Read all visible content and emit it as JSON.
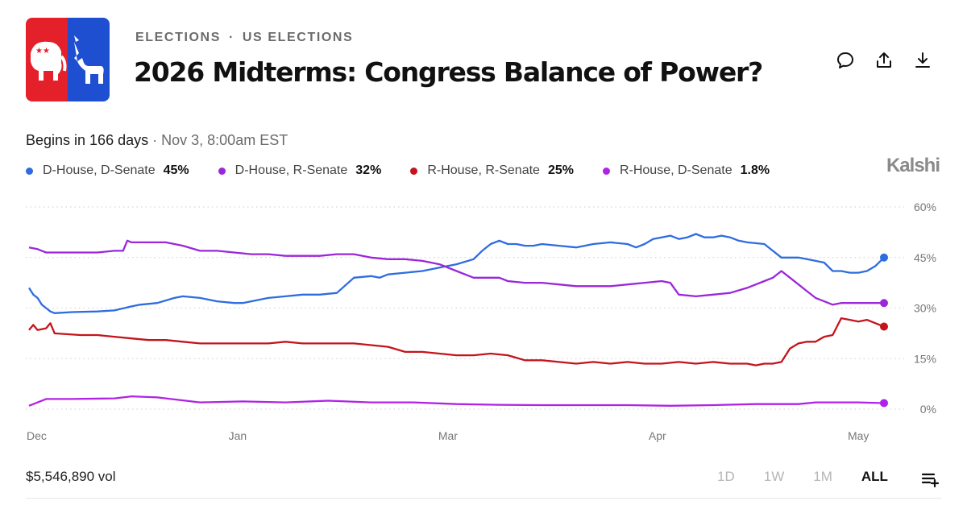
{
  "header": {
    "category_left": "ELECTIONS",
    "category_sep": "·",
    "category_right": "US ELECTIONS",
    "title": "2026 Midterms: Congress Balance of Power?"
  },
  "icons": [
    "comment-icon",
    "share-icon",
    "download-icon",
    "list-add-icon"
  ],
  "status": {
    "begins": "Begins in 166 days",
    "sep": "·",
    "date": "Nov 3, 8:00am EST"
  },
  "brand": "Kalshi",
  "colors": {
    "blue": "#2e6cdf",
    "purple": "#9b27d9",
    "red": "#c4141c",
    "grid": "#d6d6d6"
  },
  "legend": [
    {
      "label": "D-House, D-Senate",
      "value": "45%",
      "color": "#2e6cdf"
    },
    {
      "label": "D-House, R-Senate",
      "value": "32%",
      "color": "#9b27d9"
    },
    {
      "label": "R-House, R-Senate",
      "value": "25%",
      "color": "#c4141c"
    },
    {
      "label": "R-House, D-Senate",
      "value": "1.8%",
      "color": "#b023e6"
    }
  ],
  "footer": {
    "volume": "$5,546,890 vol",
    "ranges": [
      "1D",
      "1W",
      "1M",
      "ALL"
    ],
    "active_range": "ALL"
  },
  "chart_data": {
    "type": "line",
    "x_ticks": [
      "Dec",
      "Jan",
      "Mar",
      "Apr",
      "May"
    ],
    "x_tick_pos": [
      0,
      0.244,
      0.49,
      0.735,
      0.97
    ],
    "y_ticks": [
      "60%",
      "45%",
      "30%",
      "15%",
      "0%"
    ],
    "ylim": [
      0,
      60
    ],
    "grid": "horizontal dotted",
    "series": [
      {
        "name": "D-House, D-Senate",
        "color": "#2e6cdf",
        "x": [
          0,
          0.005,
          0.01,
          0.015,
          0.02,
          0.025,
          0.03,
          0.05,
          0.08,
          0.1,
          0.12,
          0.13,
          0.15,
          0.17,
          0.18,
          0.2,
          0.22,
          0.24,
          0.25,
          0.26,
          0.28,
          0.3,
          0.32,
          0.34,
          0.36,
          0.38,
          0.4,
          0.41,
          0.42,
          0.44,
          0.46,
          0.48,
          0.5,
          0.52,
          0.53,
          0.54,
          0.55,
          0.56,
          0.57,
          0.58,
          0.59,
          0.6,
          0.62,
          0.64,
          0.66,
          0.68,
          0.7,
          0.71,
          0.72,
          0.73,
          0.74,
          0.75,
          0.76,
          0.77,
          0.78,
          0.79,
          0.8,
          0.81,
          0.82,
          0.83,
          0.84,
          0.86,
          0.88,
          0.9,
          0.91,
          0.92,
          0.93,
          0.94,
          0.95,
          0.96,
          0.97,
          0.98,
          0.99,
          1.0
        ],
        "y": [
          36,
          34,
          33,
          31,
          30,
          29,
          28.5,
          28.8,
          29,
          29.3,
          30.5,
          31,
          31.5,
          33,
          33.5,
          33,
          32,
          31.5,
          31.5,
          32,
          33,
          33.5,
          34,
          34,
          34.5,
          39,
          39.5,
          39,
          40,
          40.5,
          41,
          42,
          43,
          44.5,
          47,
          49,
          50,
          49,
          49,
          48.5,
          48.5,
          49,
          48.5,
          48,
          49,
          49.5,
          49,
          48,
          49,
          50.5,
          51,
          51.5,
          50.5,
          51,
          52,
          51,
          51,
          51.5,
          51,
          50,
          49.5,
          49,
          45,
          45,
          44.5,
          44,
          43.5,
          41,
          41,
          40.5,
          40.5,
          41,
          42.5,
          45
        ]
      },
      {
        "name": "D-House, R-Senate",
        "color": "#9b27d9",
        "x": [
          0,
          0.01,
          0.015,
          0.02,
          0.03,
          0.05,
          0.08,
          0.1,
          0.11,
          0.115,
          0.12,
          0.14,
          0.16,
          0.18,
          0.2,
          0.22,
          0.24,
          0.26,
          0.28,
          0.3,
          0.32,
          0.34,
          0.36,
          0.38,
          0.4,
          0.42,
          0.44,
          0.46,
          0.48,
          0.5,
          0.52,
          0.54,
          0.55,
          0.56,
          0.58,
          0.6,
          0.62,
          0.64,
          0.66,
          0.68,
          0.7,
          0.72,
          0.74,
          0.75,
          0.76,
          0.78,
          0.8,
          0.82,
          0.84,
          0.85,
          0.86,
          0.87,
          0.88,
          0.89,
          0.9,
          0.91,
          0.92,
          0.93,
          0.94,
          0.95,
          0.96,
          0.98,
          1.0
        ],
        "y": [
          48,
          47.5,
          47,
          46.5,
          46.5,
          46.5,
          46.5,
          47,
          47,
          50,
          49.5,
          49.5,
          49.5,
          48.5,
          47,
          47,
          46.5,
          46,
          46,
          45.5,
          45.5,
          45.5,
          46,
          46,
          45,
          44.5,
          44.5,
          44,
          43,
          41,
          39,
          39,
          39,
          38,
          37.5,
          37.5,
          37,
          36.5,
          36.5,
          36.5,
          37,
          37.5,
          38,
          37.5,
          34,
          33.5,
          34,
          34.5,
          36,
          37,
          38,
          39,
          41,
          39,
          37,
          35,
          33,
          32,
          31,
          31.5,
          31.5,
          31.5,
          31.5
        ]
      },
      {
        "name": "R-House, R-Senate",
        "color": "#c4141c",
        "x": [
          0,
          0.005,
          0.01,
          0.02,
          0.025,
          0.03,
          0.06,
          0.08,
          0.1,
          0.12,
          0.14,
          0.16,
          0.18,
          0.2,
          0.22,
          0.24,
          0.26,
          0.28,
          0.3,
          0.32,
          0.34,
          0.36,
          0.38,
          0.4,
          0.42,
          0.44,
          0.46,
          0.48,
          0.5,
          0.52,
          0.54,
          0.56,
          0.58,
          0.6,
          0.62,
          0.64,
          0.66,
          0.68,
          0.7,
          0.72,
          0.74,
          0.76,
          0.78,
          0.8,
          0.82,
          0.84,
          0.85,
          0.86,
          0.87,
          0.88,
          0.89,
          0.9,
          0.91,
          0.92,
          0.93,
          0.94,
          0.95,
          0.96,
          0.97,
          0.98,
          0.99,
          1.0
        ],
        "y": [
          23.5,
          25,
          23.5,
          24,
          25.5,
          22.5,
          22,
          22,
          21.5,
          21,
          20.5,
          20.5,
          20,
          19.5,
          19.5,
          19.5,
          19.5,
          19.5,
          20,
          19.5,
          19.5,
          19.5,
          19.5,
          19,
          18.5,
          17,
          17,
          16.5,
          16,
          16,
          16.5,
          16,
          14.5,
          14.5,
          14,
          13.5,
          14,
          13.5,
          14,
          13.5,
          13.5,
          14,
          13.5,
          14,
          13.5,
          13.5,
          13,
          13.5,
          13.5,
          14,
          18,
          19.5,
          20,
          20,
          21.5,
          22,
          27,
          26.5,
          26,
          26.5,
          25.5,
          24.5
        ]
      },
      {
        "name": "R-House, D-Senate",
        "color": "#b023e6",
        "x": [
          0,
          0.02,
          0.05,
          0.1,
          0.12,
          0.15,
          0.2,
          0.25,
          0.3,
          0.35,
          0.4,
          0.45,
          0.5,
          0.55,
          0.6,
          0.65,
          0.7,
          0.75,
          0.8,
          0.85,
          0.88,
          0.9,
          0.92,
          0.95,
          0.97,
          1.0
        ],
        "y": [
          1,
          3,
          3,
          3.2,
          3.8,
          3.5,
          2,
          2.3,
          2,
          2.5,
          2,
          2,
          1.5,
          1.3,
          1.2,
          1.2,
          1.2,
          1,
          1.2,
          1.5,
          1.5,
          1.5,
          2,
          2,
          2,
          1.8
        ]
      }
    ]
  }
}
